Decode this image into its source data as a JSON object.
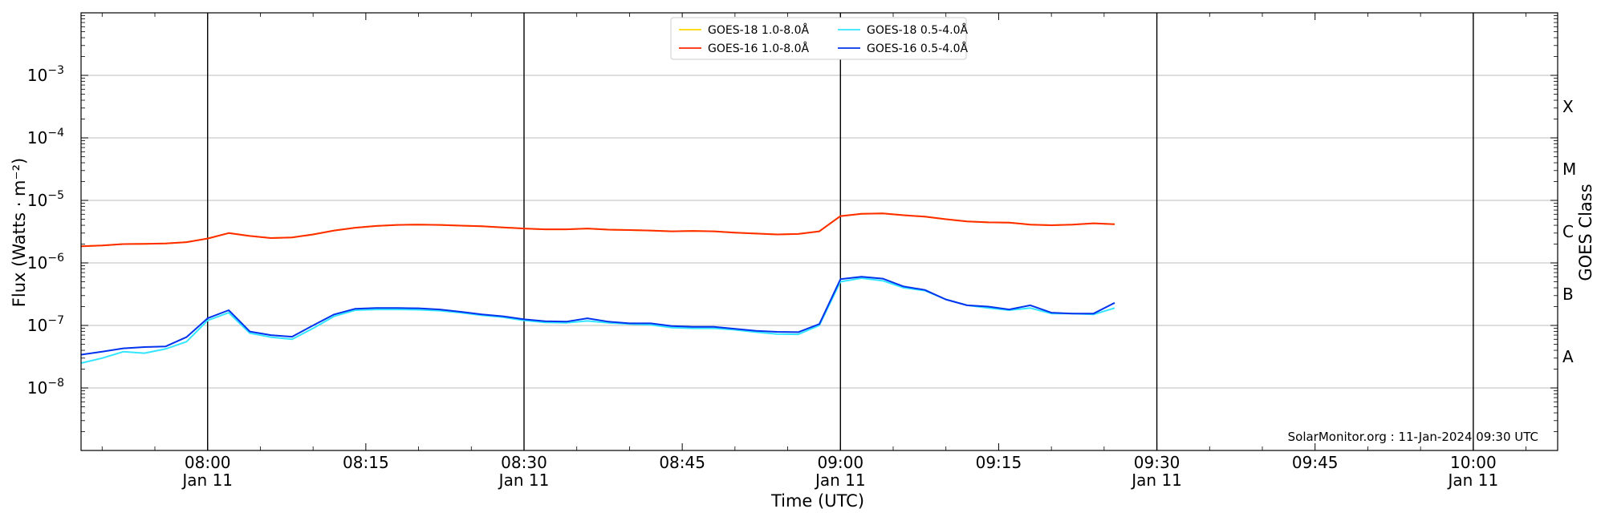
{
  "chart_data": {
    "type": "line",
    "xlabel": "Time (UTC)",
    "ylabel": "Flux (Watts · m⁻²)",
    "ylabel_right": "GOES Class",
    "y_scale": "log",
    "ylim": [
      1e-09,
      0.01
    ],
    "xlim": [
      "2024-01-11 07:48",
      "2024-01-11 10:08"
    ],
    "grid": "horizontal at decades, vertical at half-hours",
    "legend_position": "top-center",
    "watermark": "SolarMonitor.org : 11-Jan-2024 09:30 UTC",
    "y_ticks": [
      {
        "value": 1e-08,
        "base": "10",
        "exp": "−8"
      },
      {
        "value": 1e-07,
        "base": "10",
        "exp": "−7"
      },
      {
        "value": 1e-06,
        "base": "10",
        "exp": "−6"
      },
      {
        "value": 1e-05,
        "base": "10",
        "exp": "−5"
      },
      {
        "value": 0.0001,
        "base": "10",
        "exp": "−4"
      },
      {
        "value": 0.001,
        "base": "10",
        "exp": "−3"
      }
    ],
    "x_ticks": [
      {
        "time": "2024-01-11 08:00",
        "label": "08:00",
        "sub": "Jan 11"
      },
      {
        "time": "2024-01-11 08:15",
        "label": "08:15",
        "sub": ""
      },
      {
        "time": "2024-01-11 08:30",
        "label": "08:30",
        "sub": "Jan 11"
      },
      {
        "time": "2024-01-11 08:45",
        "label": "08:45",
        "sub": ""
      },
      {
        "time": "2024-01-11 09:00",
        "label": "09:00",
        "sub": "Jan 11"
      },
      {
        "time": "2024-01-11 09:15",
        "label": "09:15",
        "sub": ""
      },
      {
        "time": "2024-01-11 09:30",
        "label": "09:30",
        "sub": "Jan 11"
      },
      {
        "time": "2024-01-11 09:45",
        "label": "09:45",
        "sub": ""
      },
      {
        "time": "2024-01-11 10:00",
        "label": "10:00",
        "sub": "Jan 11"
      }
    ],
    "vlines": [
      "2024-01-11 08:00",
      "2024-01-11 08:30",
      "2024-01-11 09:00",
      "2024-01-11 09:30",
      "2024-01-11 10:00"
    ],
    "goes_classes": [
      {
        "label": "A",
        "value": 3.16e-08
      },
      {
        "label": "B",
        "value": 3.16e-07
      },
      {
        "label": "C",
        "value": 3.16e-06
      },
      {
        "label": "M",
        "value": 3.16e-05
      },
      {
        "label": "X",
        "value": 0.000316
      }
    ],
    "x": [
      "07:48",
      "07:50",
      "07:52",
      "07:54",
      "07:56",
      "07:58",
      "08:00",
      "08:02",
      "08:04",
      "08:06",
      "08:08",
      "08:10",
      "08:12",
      "08:14",
      "08:16",
      "08:18",
      "08:20",
      "08:22",
      "08:24",
      "08:26",
      "08:28",
      "08:30",
      "08:32",
      "08:34",
      "08:36",
      "08:38",
      "08:40",
      "08:42",
      "08:44",
      "08:46",
      "08:48",
      "08:50",
      "08:52",
      "08:54",
      "08:56",
      "08:58",
      "09:00",
      "09:02",
      "09:04",
      "09:06",
      "09:08",
      "09:10",
      "09:12",
      "09:14",
      "09:16",
      "09:18",
      "09:20",
      "09:22",
      "09:24",
      "09:26"
    ],
    "series": [
      {
        "name": "GOES-18 1.0-8.0Å",
        "color": "#ffd700",
        "values": [
          1.85e-06,
          1.9e-06,
          2e-06,
          2.02e-06,
          2.05e-06,
          2.15e-06,
          2.45e-06,
          3e-06,
          2.7e-06,
          2.5e-06,
          2.55e-06,
          2.85e-06,
          3.3e-06,
          3.65e-06,
          3.9e-06,
          4.05e-06,
          4.1e-06,
          4.05e-06,
          3.95e-06,
          3.85e-06,
          3.7e-06,
          3.55e-06,
          3.45e-06,
          3.45e-06,
          3.55e-06,
          3.4e-06,
          3.35e-06,
          3.3e-06,
          3.2e-06,
          3.25e-06,
          3.2e-06,
          3.05e-06,
          2.95e-06,
          2.85e-06,
          2.9e-06,
          3.2e-06,
          5.6e-06,
          6.1e-06,
          6.2e-06,
          5.8e-06,
          5.5e-06,
          5e-06,
          4.6e-06,
          4.45e-06,
          4.4e-06,
          4.1e-06,
          4e-06,
          4.1e-06,
          4.3e-06,
          4.15e-06
        ]
      },
      {
        "name": "GOES-16 1.0-8.0Å",
        "color": "#ff2a00",
        "values": [
          1.85e-06,
          1.9e-06,
          2e-06,
          2.02e-06,
          2.05e-06,
          2.15e-06,
          2.45e-06,
          3e-06,
          2.7e-06,
          2.5e-06,
          2.55e-06,
          2.85e-06,
          3.3e-06,
          3.65e-06,
          3.9e-06,
          4.05e-06,
          4.1e-06,
          4.05e-06,
          3.95e-06,
          3.85e-06,
          3.7e-06,
          3.55e-06,
          3.45e-06,
          3.45e-06,
          3.55e-06,
          3.4e-06,
          3.35e-06,
          3.3e-06,
          3.2e-06,
          3.25e-06,
          3.2e-06,
          3.05e-06,
          2.95e-06,
          2.85e-06,
          2.9e-06,
          3.2e-06,
          5.6e-06,
          6.1e-06,
          6.2e-06,
          5.8e-06,
          5.5e-06,
          5e-06,
          4.6e-06,
          4.45e-06,
          4.4e-06,
          4.1e-06,
          4e-06,
          4.1e-06,
          4.3e-06,
          4.15e-06
        ]
      },
      {
        "name": "GOES-18 0.5-4.0Å",
        "color": "#33e6ff",
        "values": [
          2.5e-08,
          3e-08,
          3.8e-08,
          3.6e-08,
          4.2e-08,
          5.5e-08,
          1.2e-07,
          1.6e-07,
          7.5e-08,
          6.5e-08,
          6e-08,
          9e-08,
          1.4e-07,
          1.75e-07,
          1.8e-07,
          1.8e-07,
          1.78e-07,
          1.72e-07,
          1.6e-07,
          1.45e-07,
          1.35e-07,
          1.2e-07,
          1.12e-07,
          1.1e-07,
          1.18e-07,
          1.1e-07,
          1.05e-07,
          1.02e-07,
          9.2e-08,
          9e-08,
          9e-08,
          8.5e-08,
          7.8e-08,
          7.3e-08,
          7.2e-08,
          1e-07,
          5e-07,
          5.7e-07,
          5.2e-07,
          4e-07,
          3.6e-07,
          2.6e-07,
          2.1e-07,
          1.9e-07,
          1.75e-07,
          1.9e-07,
          1.55e-07,
          1.55e-07,
          1.5e-07,
          1.9e-07
        ]
      },
      {
        "name": "GOES-16 0.5-4.0Å",
        "color": "#0033ee",
        "values": [
          3.4e-08,
          3.8e-08,
          4.3e-08,
          4.5e-08,
          4.6e-08,
          6.5e-08,
          1.3e-07,
          1.75e-07,
          8e-08,
          7e-08,
          6.6e-08,
          1e-07,
          1.5e-07,
          1.85e-07,
          1.9e-07,
          1.9e-07,
          1.88e-07,
          1.8e-07,
          1.65e-07,
          1.5e-07,
          1.4e-07,
          1.25e-07,
          1.17e-07,
          1.15e-07,
          1.3e-07,
          1.15e-07,
          1.08e-07,
          1.08e-07,
          9.8e-08,
          9.5e-08,
          9.5e-08,
          8.8e-08,
          8.2e-08,
          7.9e-08,
          7.8e-08,
          1.05e-07,
          5.5e-07,
          6e-07,
          5.6e-07,
          4.2e-07,
          3.7e-07,
          2.6e-07,
          2.1e-07,
          2e-07,
          1.8e-07,
          2.1e-07,
          1.6e-07,
          1.55e-07,
          1.55e-07,
          2.3e-07
        ]
      }
    ]
  }
}
